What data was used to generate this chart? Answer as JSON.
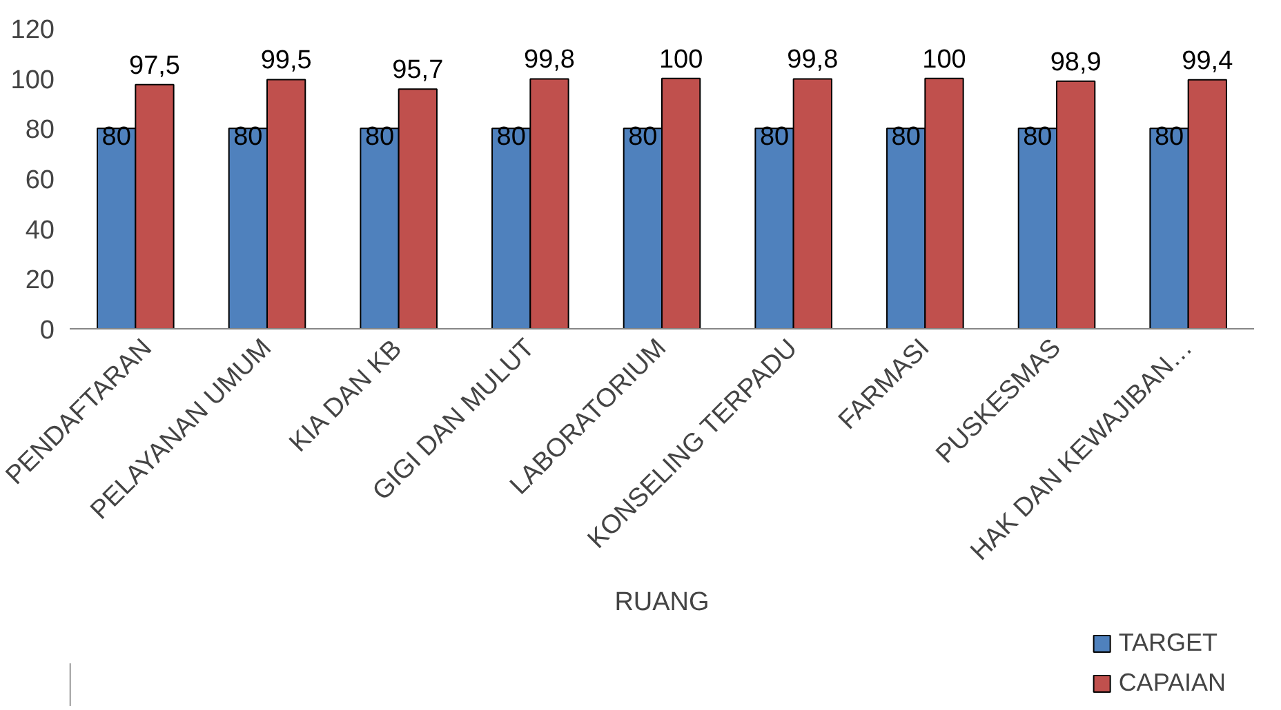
{
  "chart_data": {
    "type": "bar",
    "xlabel": "RUANG",
    "categories": [
      "PENDAFTARAN",
      "PELAYANAN UMUM",
      "KIA DAN KB",
      "GIGI DAN MULUT",
      "LABORATORIUM",
      "KONSELING TERPADU",
      "FARMASI",
      "PUSKESMAS",
      "HAK DAN KEWAJIBAN…"
    ],
    "series": [
      {
        "name": "TARGET",
        "color": "#4f81bd",
        "values": [
          80,
          80,
          80,
          80,
          80,
          80,
          80,
          80,
          80
        ],
        "value_labels": [
          "80",
          "80",
          "80",
          "80",
          "80",
          "80",
          "80",
          "80",
          "80"
        ]
      },
      {
        "name": "CAPAIAN",
        "color": "#c0504d",
        "values": [
          97.5,
          99.5,
          95.7,
          99.8,
          100,
          99.8,
          100,
          98.9,
          99.4
        ],
        "value_labels": [
          "97,5",
          "99,5",
          "95,7",
          "99,8",
          "100",
          "99,8",
          "100",
          "98,9",
          "99,4"
        ]
      }
    ],
    "ylim": [
      0,
      120
    ],
    "yticks": [
      0,
      20,
      40,
      60,
      80,
      100,
      120
    ],
    "grid": false,
    "legend": "bottom right"
  }
}
